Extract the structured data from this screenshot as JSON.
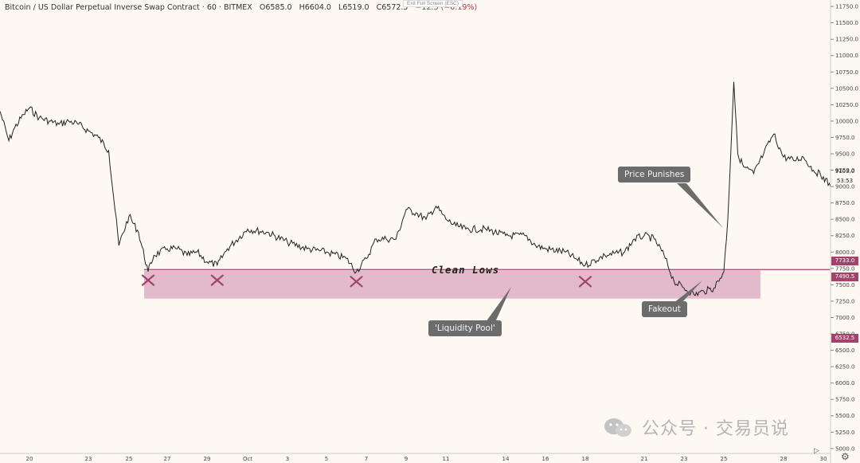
{
  "header": {
    "symbol": "Bitcoin / US Dollar Perpetual Inverse Swap Contract · 60 · BITMEX",
    "open": "O6585.0",
    "high": "H6604.0",
    "low": "L6519.0",
    "close": "C6572.5",
    "change": "−12.5 (−0.19%)",
    "exit_fullscreen": "Exit Full Screen (ESC)"
  },
  "annotations": {
    "price_punishes": "Price Punishes",
    "fakeout": "Fakeout",
    "liquidity_pool": "'Liquidity Pool'",
    "clean_lows": "Clean Lows"
  },
  "price_tags": {
    "upper": "7733.0",
    "zone": "7490.5",
    "last": "6532.5",
    "current": "9103.0",
    "countdown": "53:53"
  },
  "watermark": "公众号 · 交易员说",
  "colors": {
    "background": "#fdf8f2",
    "zone_fill": "#d9a6bd",
    "marker": "#a2436b",
    "line": "#222222",
    "callout": "#6c6c6c"
  },
  "chart_data": {
    "type": "line",
    "y_axis": {
      "ticks": [
        11750,
        11500,
        11250,
        11000,
        10750,
        10500,
        10250,
        10000,
        9750,
        9500,
        9250,
        9000,
        8750,
        8500,
        8250,
        8000,
        7750,
        7500,
        7250,
        7000,
        6750,
        6500,
        6250,
        6000,
        5750,
        5500,
        5250,
        5000
      ],
      "range": [
        4925,
        11800
      ]
    },
    "x_axis": {
      "ticks": [
        "20",
        "23",
        "25",
        "27",
        "29",
        "Oct",
        "3",
        "5",
        "7",
        "9",
        "11",
        "14",
        "16",
        "18",
        "21",
        "23",
        "25",
        "28",
        "30"
      ]
    },
    "zone": {
      "label": "Clean Lows",
      "low": 7290,
      "high": 7720
    },
    "resistance_line": 7733.0,
    "markers": [
      {
        "date": "26",
        "value": 7570
      },
      {
        "date": "29.5",
        "value": 7570
      },
      {
        "date": "6.5",
        "value": 7550
      },
      {
        "date": "18",
        "value": 7550
      }
    ],
    "series": [
      {
        "values": [
          [
            "19",
            10150
          ],
          [
            "19.3",
            9700
          ],
          [
            "19.5",
            9900
          ],
          [
            "19.8",
            10100
          ],
          [
            "20",
            10200
          ],
          [
            "20.5",
            10050
          ],
          [
            "21",
            10000
          ],
          [
            "21.5",
            9950
          ],
          [
            "22",
            10000
          ],
          [
            "22.5",
            9950
          ],
          [
            "23",
            9850
          ],
          [
            "23.5",
            9750
          ],
          [
            "24",
            9550
          ],
          [
            "24.5",
            8100
          ],
          [
            "25",
            8550
          ],
          [
            "25.5",
            8300
          ],
          [
            "26",
            7700
          ],
          [
            "26.3",
            7950
          ],
          [
            "27",
            8050
          ],
          [
            "27.5",
            8050
          ],
          [
            "28",
            7950
          ],
          [
            "28.5",
            8000
          ],
          [
            "29",
            7850
          ],
          [
            "29.5",
            7800
          ],
          [
            "30",
            8050
          ],
          [
            "Oct",
            8350
          ],
          [
            "2",
            8300
          ],
          [
            "3",
            8150
          ],
          [
            "4",
            8050
          ],
          [
            "5",
            8000
          ],
          [
            "6",
            7900
          ],
          [
            "6.5",
            7700
          ],
          [
            "7",
            7900
          ],
          [
            "7.5",
            8200
          ],
          [
            "8",
            8200
          ],
          [
            "8.5",
            8200
          ],
          [
            "9",
            8650
          ],
          [
            "9.5",
            8600
          ],
          [
            "10",
            8500
          ],
          [
            "10.5",
            8700
          ],
          [
            "11",
            8500
          ],
          [
            "11.5",
            8400
          ],
          [
            "12",
            8350
          ],
          [
            "13",
            8350
          ],
          [
            "14",
            8250
          ],
          [
            "15",
            8250
          ],
          [
            "15.5",
            8100
          ],
          [
            "16",
            8050
          ],
          [
            "17",
            8000
          ],
          [
            "17.5",
            7900
          ],
          [
            "18",
            7800
          ],
          [
            "19",
            7950
          ],
          [
            "20",
            8000
          ],
          [
            "20.5",
            8200
          ],
          [
            "21",
            8250
          ],
          [
            "21.5",
            8200
          ],
          [
            "22",
            7950
          ],
          [
            "22.5",
            7550
          ],
          [
            "23",
            7450
          ],
          [
            "23.5",
            7350
          ],
          [
            "24",
            7400
          ],
          [
            "24.5",
            7450
          ],
          [
            "25",
            7700
          ],
          [
            "25.2",
            8500
          ],
          [
            "25.5",
            10600
          ],
          [
            "25.7",
            9500
          ],
          [
            "26",
            9300
          ],
          [
            "26.5",
            9200
          ],
          [
            "27",
            9500
          ],
          [
            "27.5",
            9800
          ],
          [
            "28",
            9450
          ],
          [
            "28.5",
            9400
          ],
          [
            "29",
            9450
          ],
          [
            "29.5",
            9250
          ],
          [
            "30",
            9150
          ],
          [
            "30.3",
            9000
          ]
        ]
      }
    ]
  }
}
